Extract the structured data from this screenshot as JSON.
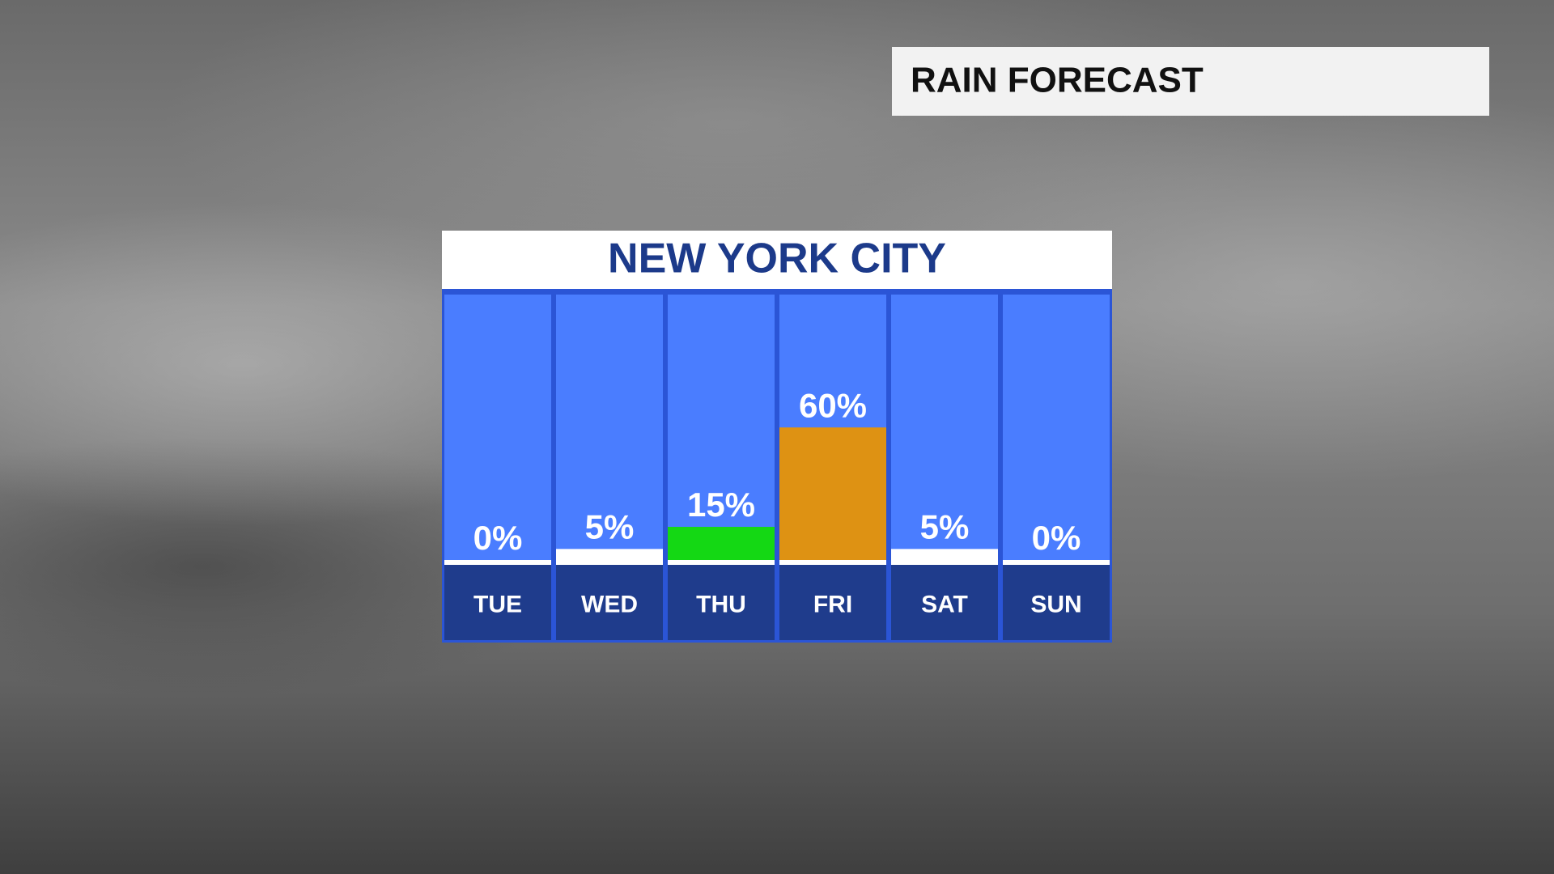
{
  "header": {
    "title": "RAIN FORECAST"
  },
  "chart_data": {
    "type": "bar",
    "title": "NEW YORK CITY",
    "categories": [
      "TUE",
      "WED",
      "THU",
      "FRI",
      "SAT",
      "SUN"
    ],
    "values": [
      0,
      5,
      15,
      60,
      5,
      0
    ],
    "value_labels": [
      "0%",
      "5%",
      "15%",
      "60%",
      "5%",
      "0%"
    ],
    "colors": [
      "#ffffff",
      "#ffffff",
      "#14d814",
      "#de9213",
      "#ffffff",
      "#ffffff"
    ]
  }
}
